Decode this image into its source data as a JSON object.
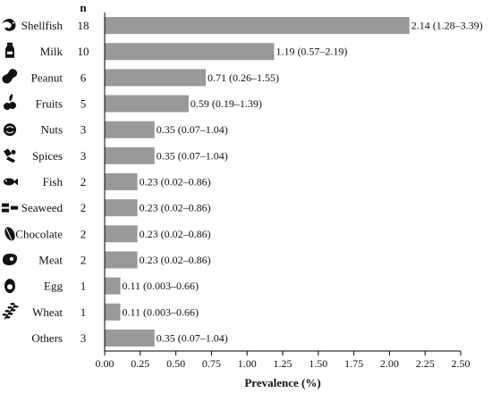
{
  "chart_data": {
    "type": "bar",
    "orientation": "horizontal",
    "n_header": "n",
    "xlabel": "Prevalence (%)",
    "xlim": [
      0,
      2.5
    ],
    "xticks": [
      "0.00",
      "0.25",
      "0.50",
      "0.75",
      "1.00",
      "1.25",
      "1.50",
      "1.75",
      "2.00",
      "2.25",
      "2.50"
    ],
    "grid": false,
    "bar_color": "#999999",
    "rows": [
      {
        "category": "Shellfish",
        "icon": "shrimp-icon",
        "n": "18",
        "value": 2.14,
        "label": "2.14 (1.28–3.39)"
      },
      {
        "category": "Milk",
        "icon": "milk-carton-icon",
        "n": "10",
        "value": 1.19,
        "label": "1.19 (0.57–2.19)"
      },
      {
        "category": "Peanut",
        "icon": "peanut-icon",
        "n": "6",
        "value": 0.71,
        "label": "0.71 (0.26–1.55)"
      },
      {
        "category": "Fruits",
        "icon": "fruits-icon",
        "n": "5",
        "value": 0.59,
        "label": "0.59 (0.19–1.39)"
      },
      {
        "category": "Nuts",
        "icon": "nuts-icon",
        "n": "3",
        "value": 0.35,
        "label": "0.35 (0.07–1.04)"
      },
      {
        "category": "Spices",
        "icon": "spices-icon",
        "n": "3",
        "value": 0.35,
        "label": "0.35 (0.07–1.04)"
      },
      {
        "category": "Fish",
        "icon": "fish-icon",
        "n": "2",
        "value": 0.23,
        "label": "0.23 (0.02–0.86)"
      },
      {
        "category": "Seaweed",
        "icon": "seaweed-icon",
        "n": "2",
        "value": 0.23,
        "label": "0.23 (0.02–0.86)"
      },
      {
        "category": "Chocolate",
        "icon": "cacao-icon",
        "n": "2",
        "value": 0.23,
        "label": "0.23 (0.02–0.86)"
      },
      {
        "category": "Meat",
        "icon": "steak-icon",
        "n": "2",
        "value": 0.23,
        "label": "0.23 (0.02–0.86)"
      },
      {
        "category": "Egg",
        "icon": "egg-icon",
        "n": "1",
        "value": 0.11,
        "label": "0.11 (0.003–0.66)"
      },
      {
        "category": "Wheat",
        "icon": "wheat-icon",
        "n": "1",
        "value": 0.11,
        "label": "0.11 (0.003–0.66)"
      },
      {
        "category": "Others",
        "icon": "",
        "n": "3",
        "value": 0.35,
        "label": "0.35 (0.07–1.04)"
      }
    ]
  }
}
